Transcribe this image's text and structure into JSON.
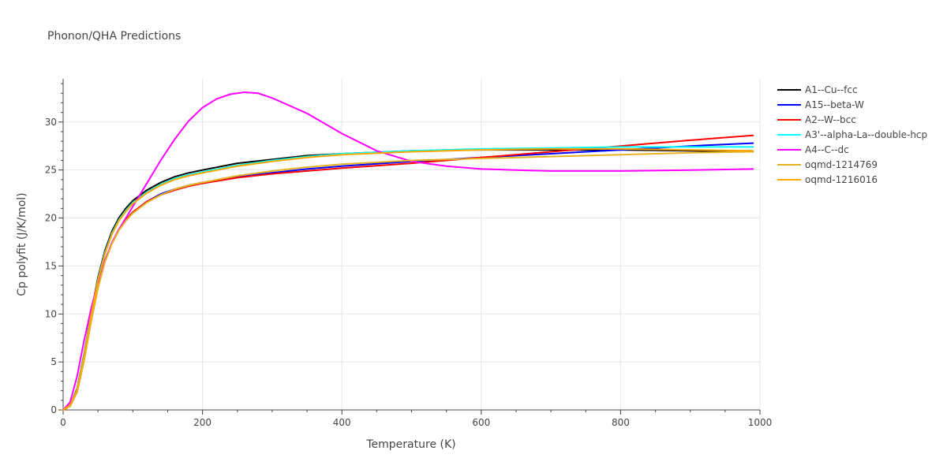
{
  "chart_data": {
    "type": "line",
    "title": "Phonon/QHA Predictions",
    "xlabel": "Temperature (K)",
    "ylabel": "Cp polyfit (J/K/mol)",
    "xlim": [
      0,
      1000
    ],
    "ylim": [
      0,
      34.5
    ],
    "x_ticks": [
      0,
      200,
      400,
      600,
      800,
      1000
    ],
    "y_ticks": [
      0,
      5,
      10,
      15,
      20,
      25,
      30
    ],
    "x_minor_step": 50,
    "y_minor_step": 1,
    "grid": true,
    "legend_position": "right",
    "series": [
      {
        "name": "A1--Cu--fcc",
        "color": "#000000",
        "x": [
          0,
          10,
          20,
          30,
          40,
          50,
          60,
          70,
          80,
          90,
          100,
          120,
          140,
          160,
          180,
          200,
          250,
          300,
          350,
          400,
          500,
          600,
          700,
          800,
          900,
          990
        ],
        "y": [
          0,
          0.5,
          2.2,
          5.8,
          10.0,
          13.8,
          16.6,
          18.6,
          20.0,
          21.0,
          21.8,
          22.9,
          23.7,
          24.3,
          24.7,
          25.0,
          25.7,
          26.1,
          26.5,
          26.7,
          27.0,
          27.1,
          27.1,
          27.1,
          27.0,
          26.9
        ]
      },
      {
        "name": "A15--beta-W",
        "color": "#0000ff",
        "x": [
          0,
          10,
          20,
          30,
          40,
          50,
          60,
          70,
          80,
          90,
          100,
          120,
          140,
          160,
          180,
          200,
          250,
          300,
          350,
          400,
          500,
          600,
          700,
          800,
          900,
          990
        ],
        "y": [
          0,
          0.4,
          1.9,
          5.2,
          9.2,
          12.8,
          15.5,
          17.4,
          18.8,
          19.8,
          20.6,
          21.7,
          22.5,
          23.0,
          23.4,
          23.7,
          24.3,
          24.7,
          25.1,
          25.4,
          25.9,
          26.3,
          26.7,
          27.1,
          27.5,
          27.8
        ]
      },
      {
        "name": "A2--W--bcc",
        "color": "#ff0000",
        "x": [
          0,
          10,
          20,
          30,
          40,
          50,
          60,
          70,
          80,
          90,
          100,
          120,
          140,
          160,
          180,
          200,
          250,
          300,
          350,
          400,
          500,
          600,
          700,
          800,
          900,
          990
        ],
        "y": [
          0,
          0.4,
          1.9,
          5.2,
          9.2,
          12.8,
          15.5,
          17.4,
          18.8,
          19.8,
          20.6,
          21.7,
          22.4,
          22.9,
          23.3,
          23.6,
          24.2,
          24.6,
          24.9,
          25.2,
          25.7,
          26.3,
          26.9,
          27.5,
          28.1,
          28.6
        ]
      },
      {
        "name": "A3'--alpha-La--double-hcp",
        "color": "#00ffff",
        "x": [
          0,
          10,
          20,
          30,
          40,
          50,
          60,
          70,
          80,
          90,
          100,
          120,
          140,
          160,
          180,
          200,
          250,
          300,
          350,
          400,
          500,
          600,
          700,
          800,
          900,
          990
        ],
        "y": [
          0,
          0.5,
          2.1,
          5.7,
          9.9,
          13.6,
          16.4,
          18.4,
          19.8,
          20.8,
          21.6,
          22.7,
          23.5,
          24.1,
          24.5,
          24.8,
          25.5,
          26.0,
          26.4,
          26.7,
          27.0,
          27.2,
          27.3,
          27.4,
          27.4,
          27.4
        ]
      },
      {
        "name": "A4--C--dc",
        "color": "#ff00ff",
        "x": [
          0,
          10,
          20,
          30,
          40,
          50,
          60,
          70,
          80,
          90,
          100,
          120,
          140,
          160,
          180,
          200,
          220,
          240,
          260,
          280,
          300,
          350,
          400,
          450,
          500,
          550,
          600,
          650,
          700,
          800,
          900,
          990
        ],
        "y": [
          0,
          0.8,
          3.5,
          7.2,
          10.5,
          13.3,
          15.6,
          17.4,
          18.8,
          20.0,
          21.2,
          23.6,
          26.0,
          28.2,
          30.1,
          31.5,
          32.4,
          32.9,
          33.1,
          33.0,
          32.5,
          30.9,
          28.8,
          27.0,
          25.9,
          25.4,
          25.1,
          25.0,
          24.9,
          24.9,
          25.0,
          25.1
        ]
      },
      {
        "name": "oqmd-1214769",
        "color": "#e6b422",
        "x": [
          0,
          10,
          20,
          30,
          40,
          50,
          60,
          70,
          80,
          90,
          100,
          120,
          140,
          160,
          180,
          200,
          250,
          300,
          350,
          400,
          500,
          600,
          700,
          800,
          900,
          990
        ],
        "y": [
          0,
          0.4,
          1.9,
          5.1,
          9.1,
          12.7,
          15.4,
          17.3,
          18.7,
          19.7,
          20.5,
          21.6,
          22.4,
          23.0,
          23.4,
          23.7,
          24.4,
          24.9,
          25.3,
          25.6,
          26.0,
          26.2,
          26.4,
          26.6,
          26.8,
          26.9
        ]
      },
      {
        "name": "oqmd-1216016",
        "color": "#ffa500",
        "x": [
          0,
          10,
          20,
          30,
          40,
          50,
          60,
          70,
          80,
          90,
          100,
          120,
          140,
          160,
          180,
          200,
          250,
          300,
          350,
          400,
          500,
          600,
          700,
          800,
          900,
          990
        ],
        "y": [
          0,
          0.5,
          2.1,
          5.6,
          9.8,
          13.5,
          16.3,
          18.3,
          19.7,
          20.7,
          21.5,
          22.6,
          23.4,
          24.0,
          24.4,
          24.7,
          25.4,
          25.9,
          26.3,
          26.6,
          26.9,
          27.1,
          27.2,
          27.2,
          27.1,
          27.0
        ]
      }
    ]
  }
}
